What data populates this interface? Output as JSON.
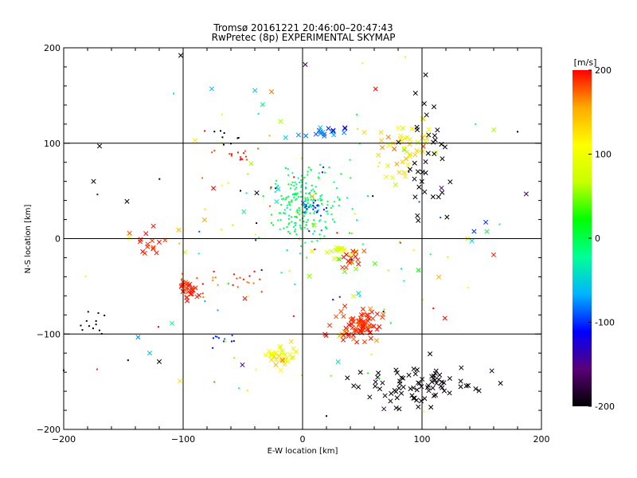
{
  "chart_data": {
    "type": "scatter",
    "title": "Tromsø 20161221 20:46:00–20:47:43",
    "subtitle": "RwPretec (8p) EXPERIMENTAL SKYMAP",
    "xlabel": "E-W location [km]",
    "ylabel": "N-S location [km]",
    "xlim": [
      -200,
      200
    ],
    "ylim": [
      -200,
      200
    ],
    "x_ticks": [
      -200,
      -100,
      0,
      100,
      200
    ],
    "y_ticks": [
      -200,
      -100,
      0,
      100,
      200
    ],
    "grid_lines_x": [
      -100,
      0,
      100
    ],
    "grid_lines_y": [
      -100,
      0,
      100
    ],
    "colorbar": {
      "label": "[m/s]",
      "range": [
        -200,
        200
      ],
      "ticks": [
        200,
        100,
        0,
        -100,
        -200
      ],
      "colors": [
        "#000000",
        "#5a0078",
        "#0000ff",
        "#00b4ff",
        "#00ff96",
        "#00ff00",
        "#c8ff00",
        "#ffff00",
        "#ffaa00",
        "#ff0000"
      ]
    },
    "clusters": [
      {
        "name": "central-meteor-cloud",
        "x": 0,
        "y": 35,
        "sx": 14,
        "sy": 20,
        "v": -10,
        "vs": 15,
        "n": 220,
        "marker": "dot"
      },
      {
        "name": "central-blue",
        "x": 8,
        "y": 32,
        "sx": 6,
        "sy": 4,
        "v": -100,
        "vs": 10,
        "n": 20,
        "marker": "dot"
      },
      {
        "name": "se-red-cluster",
        "x": 50,
        "y": -88,
        "sx": 8,
        "sy": 7,
        "v": 190,
        "vs": 10,
        "n": 70,
        "marker": "cross"
      },
      {
        "name": "se-black-band",
        "x": 95,
        "y": -155,
        "sx": 22,
        "sy": 10,
        "v": -200,
        "vs": 5,
        "n": 80,
        "marker": "cross"
      },
      {
        "name": "s-yellow-cluster",
        "x": -18,
        "y": -123,
        "sx": 6,
        "sy": 8,
        "v": 110,
        "vs": 20,
        "n": 35,
        "marker": "cross"
      },
      {
        "name": "sw-red-cluster",
        "x": -95,
        "y": -55,
        "sx": 5,
        "sy": 5,
        "v": 190,
        "vs": 10,
        "n": 30,
        "marker": "cross"
      },
      {
        "name": "w-red-chain",
        "x": -60,
        "y": -48,
        "sx": 20,
        "sy": 8,
        "v": 185,
        "vs": 15,
        "n": 25,
        "marker": "dot"
      },
      {
        "name": "far-w-red",
        "x": -130,
        "y": -5,
        "sx": 8,
        "sy": 10,
        "v": 190,
        "vs": 10,
        "n": 15,
        "marker": "cross"
      },
      {
        "name": "ne-yellow-cluster",
        "x": 85,
        "y": 95,
        "sx": 10,
        "sy": 14,
        "v": 110,
        "vs": 40,
        "n": 50,
        "marker": "cross"
      },
      {
        "name": "ne-black",
        "x": 105,
        "y": 80,
        "sx": 8,
        "sy": 30,
        "v": -200,
        "vs": 5,
        "n": 35,
        "marker": "cross"
      },
      {
        "name": "n-blue-row",
        "x": 20,
        "y": 110,
        "sx": 10,
        "sy": 4,
        "v": -90,
        "vs": 20,
        "n": 18,
        "marker": "cross"
      },
      {
        "name": "nw-red",
        "x": -55,
        "y": 88,
        "sx": 8,
        "sy": 4,
        "v": 190,
        "vs": 10,
        "n": 15,
        "marker": "dot"
      },
      {
        "name": "nw-black",
        "x": -70,
        "y": 105,
        "sx": 5,
        "sy": 4,
        "v": -200,
        "vs": 5,
        "n": 8,
        "marker": "dot"
      },
      {
        "name": "sw-black",
        "x": -180,
        "y": -90,
        "sx": 8,
        "sy": 10,
        "v": -200,
        "vs": 5,
        "n": 12,
        "marker": "dot"
      },
      {
        "name": "s-blue-strip",
        "x": -68,
        "y": -108,
        "sx": 8,
        "sy": 4,
        "v": -100,
        "vs": 10,
        "n": 10,
        "marker": "dot"
      },
      {
        "name": "c-green-line",
        "x": 30,
        "y": -15,
        "sx": 10,
        "sy": 8,
        "v": 80,
        "vs": 30,
        "n": 20,
        "marker": "cross"
      },
      {
        "name": "c-red-s",
        "x": 40,
        "y": -25,
        "sx": 5,
        "sy": 6,
        "v": 190,
        "vs": 10,
        "n": 15,
        "marker": "cross"
      },
      {
        "name": "scatter-mixed",
        "x": 0,
        "y": 0,
        "sx": 80,
        "sy": 80,
        "v": 40,
        "vs": 140,
        "n": 150,
        "marker": "mixed"
      },
      {
        "name": "se-red-ring",
        "x": 40,
        "y": -100,
        "sx": 10,
        "sy": 5,
        "v": 180,
        "vs": 20,
        "n": 20,
        "marker": "cross"
      }
    ],
    "isolated_points": [
      {
        "x": -102,
        "y": 192,
        "v": -200,
        "marker": "cross"
      },
      {
        "x": -170,
        "y": 97,
        "v": -200,
        "marker": "cross"
      },
      {
        "x": -175,
        "y": 60,
        "v": -200,
        "marker": "cross"
      },
      {
        "x": -147,
        "y": 39,
        "v": -200,
        "marker": "cross"
      },
      {
        "x": -76,
        "y": 157,
        "v": -60,
        "marker": "cross"
      },
      {
        "x": -26,
        "y": 154,
        "v": 170,
        "marker": "cross"
      },
      {
        "x": -108,
        "y": 152,
        "v": -40,
        "marker": "dot"
      },
      {
        "x": -128,
        "y": -120,
        "v": -60,
        "marker": "cross"
      },
      {
        "x": 160,
        "y": 114,
        "v": 60,
        "marker": "cross"
      },
      {
        "x": 180,
        "y": 112,
        "v": -200,
        "marker": "dot"
      },
      {
        "x": 160,
        "y": -17,
        "v": 190,
        "marker": "cross"
      },
      {
        "x": 165,
        "y": 15,
        "v": -30,
        "marker": "dot"
      },
      {
        "x": -120,
        "y": -129,
        "v": -200,
        "marker": "cross"
      },
      {
        "x": -200,
        "y": -138,
        "v": -200,
        "marker": "dot"
      },
      {
        "x": -172,
        "y": -137,
        "v": 190,
        "marker": "dot"
      },
      {
        "x": 20,
        "y": -186,
        "v": -200,
        "marker": "dot"
      }
    ]
  }
}
